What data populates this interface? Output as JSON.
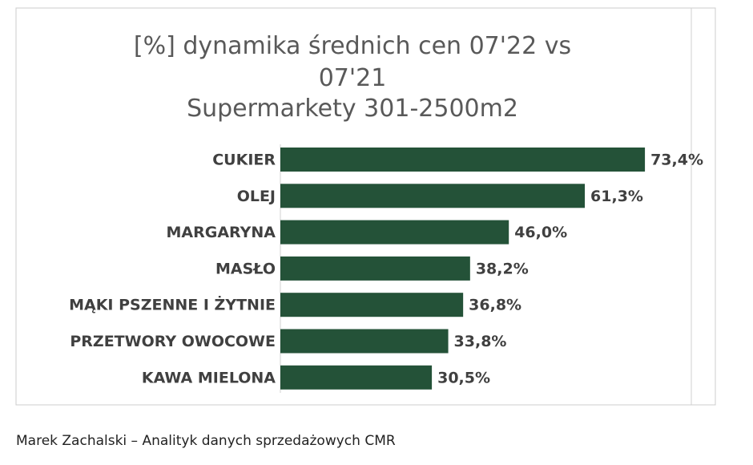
{
  "chart_data": {
    "type": "bar",
    "orientation": "horizontal",
    "title": "[%] dynamika średnich cen 07'22 vs 07'21",
    "subtitle": "Supermarkety 301-2500m2",
    "categories": [
      "CUKIER",
      "OLEJ",
      "MARGARYNA",
      "MASŁO",
      "MĄKI PSZENNE I ŻYTNIE",
      "PRZETWORY OWOCOWE",
      "KAWA MIELONA"
    ],
    "values": [
      73.4,
      61.3,
      46.0,
      38.2,
      36.8,
      33.8,
      30.5
    ],
    "value_labels": [
      "73,4%",
      "61,3%",
      "46,0%",
      "38,2%",
      "36,8%",
      "33,8%",
      "30,5%"
    ],
    "color": "#245238"
  },
  "footer": "Marek Zachalski – Analityk danych sprzedażowych CMR"
}
